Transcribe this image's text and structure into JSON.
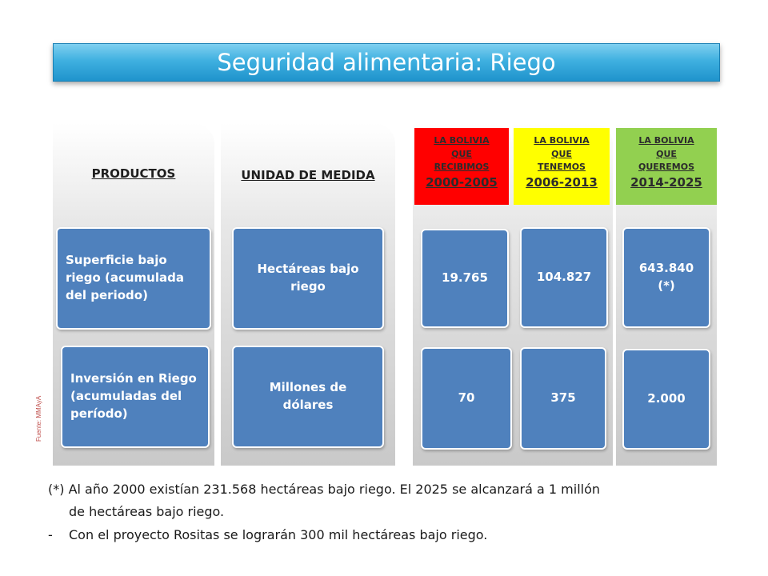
{
  "title": "Seguridad alimentaria: Riego",
  "columns": {
    "productos": {
      "header": "PRODUCTOS",
      "items": [
        "Superficie bajo riego (acumulada del periodo)",
        "Inversión en Riego (acumuladas del período)"
      ]
    },
    "unidad": {
      "header": "UNIDAD DE MEDIDA",
      "items": [
        "Hectáreas bajo riego",
        "Millones de dólares"
      ]
    }
  },
  "periods": [
    {
      "label_line1": "LA BOLIVIA",
      "label_line2": "QUE",
      "label_line3": "RECIBIMOS",
      "years": "2000-2005",
      "color": "#ff0000",
      "hectareas": "19.765",
      "inversion": "70"
    },
    {
      "label_line1": "LA BOLIVIA",
      "label_line2": "QUE",
      "label_line3": "TENEMOS",
      "years": "2006-2013",
      "color": "#ffff00",
      "hectareas": "104.827",
      "inversion": "375"
    },
    {
      "label_line1": "LA BOLIVIA",
      "label_line2": "QUE",
      "label_line3": "QUEREMOS",
      "years": "2014-2025",
      "color": "#92d050",
      "hectareas_line1": "643.840",
      "hectareas_line2": "(*)",
      "inversion": "2.000"
    }
  ],
  "source": "Fuente: MMAyA",
  "footnotes": {
    "line1": "(*) Al año 2000 existían 231.568 hectáreas bajo riego.  El 2025 se alcanzará a 1 millón",
    "line2": "de hectáreas bajo riego.",
    "line3_bullet": "-",
    "line3": "Con el proyecto Rositas se lograrán 300 mil hectáreas bajo riego."
  }
}
